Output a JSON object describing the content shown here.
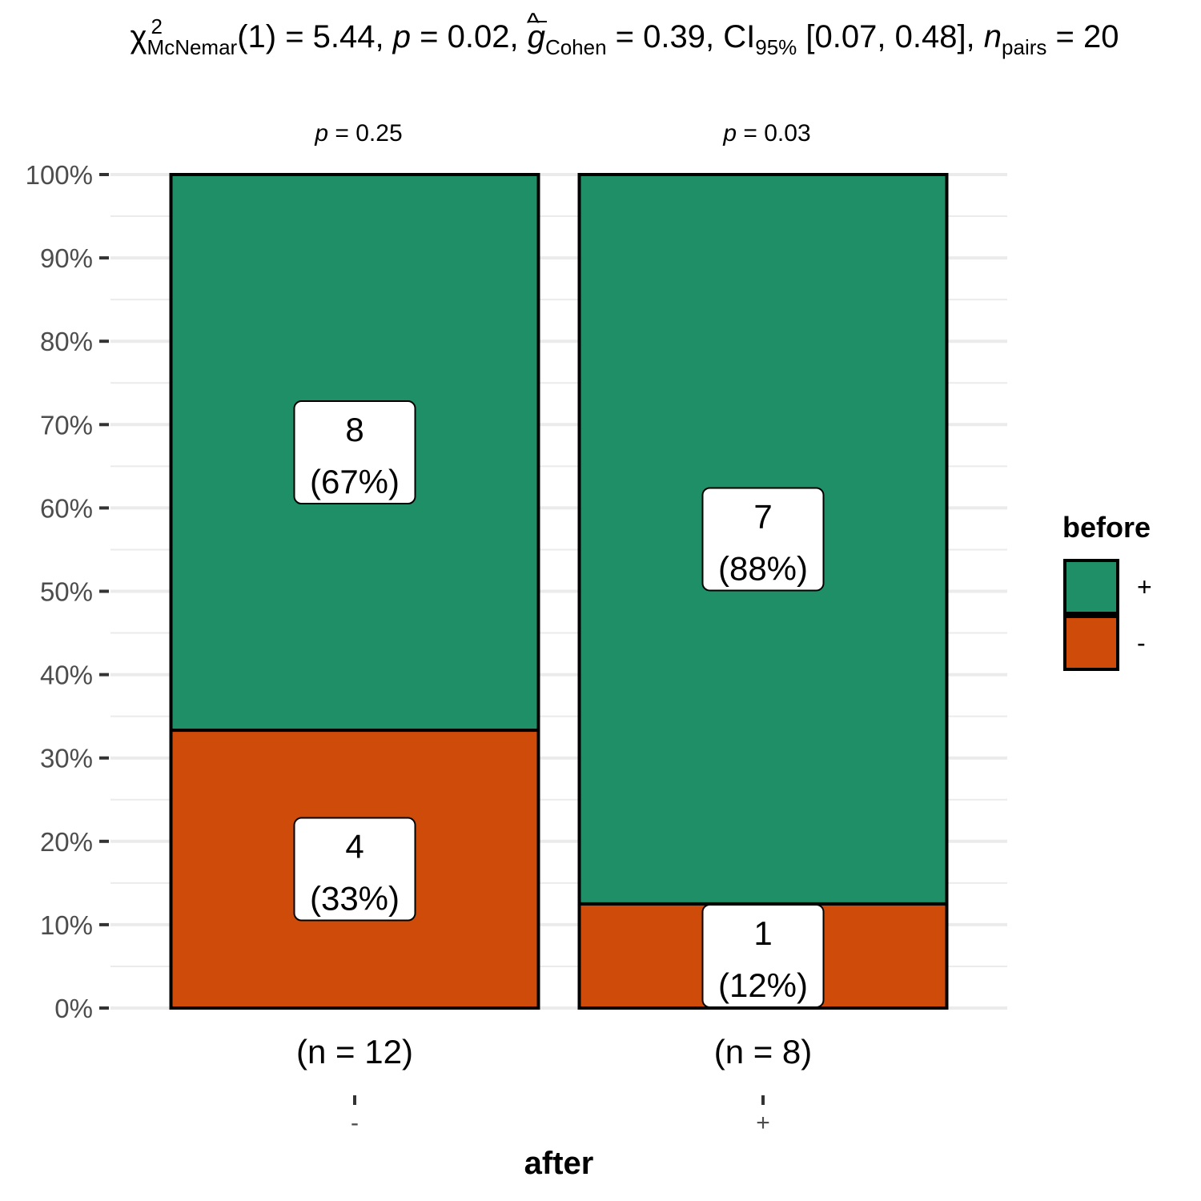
{
  "subtitle": {
    "chi": "χ",
    "chi_sup": "2",
    "chi_sub": "McNemar",
    "stat": "(1) = 5.44, ",
    "p_label": "p",
    "p_val": " = 0.02, ",
    "g_label": "g",
    "g_sub": "Cohen",
    "g_val": " = 0.39, CI",
    "ci_sub": "95%",
    "ci_val": " [0.07, 0.48], ",
    "n_label": "n",
    "n_sub": "pairs",
    "n_val": " = 20"
  },
  "chart_data": {
    "type": "bar",
    "stacked": "percent",
    "categories": [
      "-",
      "+"
    ],
    "category_counts": [
      "(n = 12)",
      "(n = 8)"
    ],
    "top_labels": [
      "p = 0.25",
      "p = 0.03"
    ],
    "series": [
      {
        "name": "+",
        "color": "#1F8F68",
        "counts": [
          8,
          7
        ],
        "percent_labels": [
          "(67%)",
          "(88%)"
        ],
        "values": [
          66.67,
          87.5
        ]
      },
      {
        "name": "-",
        "color": "#CE4B0A",
        "counts": [
          4,
          1
        ],
        "percent_labels": [
          "(33%)",
          "(12%)"
        ],
        "values": [
          33.33,
          12.5
        ]
      }
    ],
    "xlabel": "after",
    "ylabel": "",
    "ylim": [
      0,
      100
    ],
    "yticks": [
      "0%",
      "10%",
      "20%",
      "30%",
      "40%",
      "50%",
      "60%",
      "70%",
      "80%",
      "90%",
      "100%"
    ],
    "legend_title": "before",
    "legend_position": "right",
    "grid": true
  }
}
